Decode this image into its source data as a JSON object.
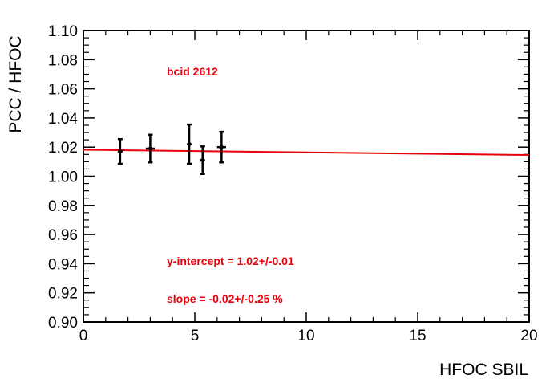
{
  "chart_data": {
    "type": "scatter",
    "title": "",
    "xlabel": "HFOC  SBIL",
    "ylabel": "PCC / HFOC",
    "xlim": [
      0,
      20
    ],
    "ylim": [
      0.9,
      1.1
    ],
    "x_ticks": [
      "0",
      "5",
      "10",
      "15",
      "20"
    ],
    "y_ticks": [
      "0.90",
      "0.92",
      "0.94",
      "0.96",
      "0.98",
      "1.00",
      "1.02",
      "1.04",
      "1.06",
      "1.08",
      "1.10"
    ],
    "grid": false,
    "series": [
      {
        "points": [
          {
            "x": 1.65,
            "y": 1.017,
            "yerr": 0.0085,
            "xerr": 0.05
          },
          {
            "x": 3.0,
            "y": 1.019,
            "yerr": 0.0095,
            "xerr": 0.2
          },
          {
            "x": 4.75,
            "y": 1.022,
            "yerr": 0.0135,
            "xerr": 0.05
          },
          {
            "x": 5.35,
            "y": 1.011,
            "yerr": 0.0095,
            "xerr": 0.1
          },
          {
            "x": 6.2,
            "y": 1.02,
            "yerr": 0.0105,
            "xerr": 0.2
          }
        ],
        "color": "#000000"
      }
    ],
    "fit": {
      "x": [
        0,
        20
      ],
      "y": [
        1.0182,
        1.0146
      ],
      "color": "#e8000b"
    },
    "annotations": [
      {
        "key": "bcid",
        "text": "bcid 2612"
      },
      {
        "key": "intercept",
        "text": "y-intercept = 1.02+/-0.01"
      },
      {
        "key": "slope",
        "text": "slope = -0.02+/-0.25 %"
      }
    ]
  }
}
